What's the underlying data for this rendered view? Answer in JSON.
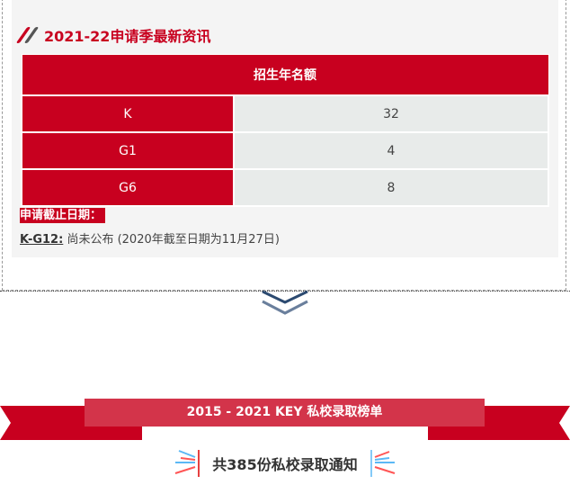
{
  "section": {
    "title": "2021-22申请季最新资讯"
  },
  "table": {
    "header": "招生年名额",
    "rows": [
      {
        "grade": "K",
        "count": "32"
      },
      {
        "grade": "G1",
        "count": "4"
      },
      {
        "grade": "G6",
        "count": "8"
      }
    ]
  },
  "deadline": {
    "label": "申请截止日期：",
    "grade": "K-G12:",
    "text": " 尚未公布 (2020年截至日期为11月27日)"
  },
  "banner": {
    "title": "2015 - 2021 KEY 私校录取榜单"
  },
  "subtitle": "共385份私校录取通知",
  "colors": {
    "accent": "#c8001f",
    "band": "#d3344a",
    "chevron": "#2c4a70"
  }
}
